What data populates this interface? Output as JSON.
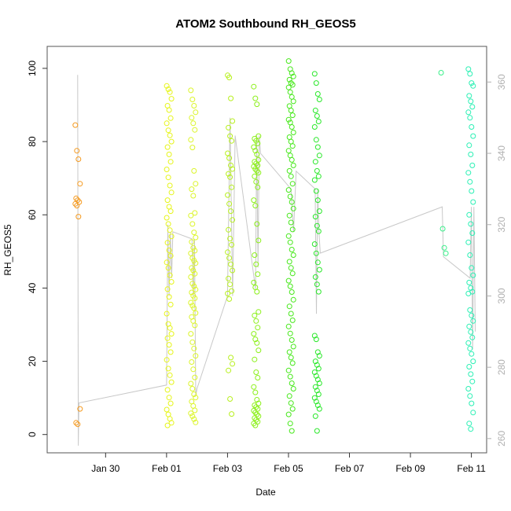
{
  "chart_data": {
    "type": "scatter",
    "title": "ATOM2 Southbound RH_GEOS5",
    "xlabel": "Date",
    "ylabel": "RH_GEOS5",
    "xlim": [
      "2017-01-28T02:00",
      "2017-02-11T12:00"
    ],
    "ylim": [
      -5,
      106
    ],
    "x_ticks": [
      {
        "date": "2017-01-30",
        "label": "Jan 30"
      },
      {
        "date": "2017-02-01",
        "label": "Feb 01"
      },
      {
        "date": "2017-02-03",
        "label": "Feb 03"
      },
      {
        "date": "2017-02-05",
        "label": "Feb 05"
      },
      {
        "date": "2017-02-07",
        "label": "Feb 07"
      },
      {
        "date": "2017-02-09",
        "label": "Feb 09"
      },
      {
        "date": "2017-02-11",
        "label": "Feb 11"
      }
    ],
    "y_ticks": [
      0,
      20,
      40,
      60,
      80,
      100
    ],
    "right_axis": {
      "description": "secondary gray axis for the flight track line (longitude)",
      "ticks": [
        260,
        280,
        300,
        320,
        340,
        360
      ],
      "range": [
        256,
        370
      ],
      "color": "#b0b0b0"
    },
    "marker_colors": {
      "2017-01-29": "#f59a1f",
      "2017-02-01": "#e6f51a",
      "2017-02-02": "#dcf52a",
      "2017-02-03": "#b8f01f",
      "2017-02-04": "#8cf01a",
      "2017-02-05": "#46e81a",
      "2017-02-06": "#2ae82a",
      "2017-02-10": "#3af08a",
      "2017-02-11": "#2af0b4"
    },
    "series": [
      {
        "date": "2017-01-29",
        "time": "2017-01-29T02:00",
        "values": [
          84.5,
          77.5,
          75.2,
          68.5,
          64.5,
          64.0,
          63.5,
          63.0,
          62.5,
          59.5,
          7.0,
          3.2,
          2.8
        ]
      },
      {
        "date": "2017-02-01",
        "time": "2017-02-01T02:00",
        "values": [
          95.2,
          94.3,
          93.5,
          91.7,
          89.8,
          88.6,
          86.4,
          85.0,
          83.1,
          81.7,
          80.0,
          78.5,
          76.5,
          74.5,
          72.4,
          70.2,
          68.0,
          66.1,
          64.0,
          62.2,
          61.0,
          59.2,
          57.5,
          55.8,
          54.1,
          52.4,
          50.3,
          48.8,
          47.0,
          45.5,
          43.5,
          41.7,
          39.7,
          37.6,
          35.5,
          33.0,
          30.2,
          29.1,
          27.5,
          26.3,
          24.5,
          22.5,
          20.4,
          18.0,
          16.2,
          14.3,
          12.2,
          10.1,
          8.5,
          6.8,
          5.5,
          4.3,
          3.2,
          2.5
        ]
      },
      {
        "date": "2017-02-02",
        "time": "2017-02-01T21:00",
        "values": [
          94.0,
          91.5,
          89.8,
          88.0,
          86.5,
          85.0,
          83.2,
          80.5,
          78.4,
          72.0,
          68.5,
          67.0,
          65.2,
          60.5,
          59.8,
          57.5,
          55.2,
          53.8,
          52.6,
          51.0,
          50.2,
          49.5,
          48.2,
          47.5,
          46.8,
          45.5,
          44.8,
          43.9,
          43.0,
          41.2,
          40.5,
          39.6,
          38.8,
          37.9,
          37.2,
          36.0,
          35.2,
          34.5,
          33.2,
          32.1,
          31.0,
          29.8,
          27.5,
          25.2,
          23.5,
          21.5,
          19.8,
          17.8,
          15.6,
          13.9,
          12.5,
          11.0,
          10.1,
          9.0,
          7.8,
          6.6,
          5.8,
          5.0,
          4.2,
          3.3
        ]
      },
      {
        "date": "2017-02-03",
        "time": "2017-02-03T02:00",
        "values": [
          98.1,
          97.5,
          91.8,
          85.6,
          83.8,
          81.5,
          80.2,
          76.8,
          75.5,
          73.5,
          72.5,
          71.2,
          70.3,
          67.5,
          65.4,
          63.0,
          61.0,
          58.6,
          55.9,
          53.5,
          51.8,
          49.8,
          48.2,
          46.5,
          44.8,
          42.6,
          41.0,
          39.2,
          38.5,
          37.0,
          21.0,
          19.3,
          17.5,
          9.7,
          5.6
        ]
      },
      {
        "date": "2017-02-04",
        "time": "2017-02-03T22:30",
        "values": [
          95.0,
          91.8,
          90.2,
          81.5,
          80.8,
          80.2,
          79.5,
          78.5,
          77.5,
          76.5,
          75.0,
          74.5,
          74.0,
          73.5,
          73.2,
          72.5,
          72.0,
          71.5,
          70.5,
          69.0,
          67.5,
          64.0,
          62.5,
          57.5,
          53.0,
          49.0,
          46.5,
          43.8,
          41.5,
          40.2,
          39.0,
          33.5,
          32.5,
          31.0,
          29.2,
          27.5,
          26.0,
          25.0,
          23.0,
          20.5,
          17.0,
          15.5,
          13.0,
          11.5,
          9.5,
          8.5,
          8.0,
          7.5,
          7.0,
          6.5,
          6.0,
          5.5,
          5.0,
          4.5,
          4.0,
          3.5,
          3.0,
          2.5
        ]
      },
      {
        "date": "2017-02-05",
        "time": "2017-02-05T02:00",
        "values": [
          102.0,
          99.8,
          98.7,
          97.8,
          96.9,
          96.0,
          95.5,
          94.8,
          93.5,
          92.2,
          91.0,
          89.7,
          88.5,
          87.2,
          86.0,
          85.2,
          84.0,
          82.5,
          81.2,
          80.0,
          78.8,
          77.5,
          76.2,
          75.0,
          73.5,
          72.0,
          70.5,
          68.5,
          66.8,
          65.0,
          63.5,
          61.7,
          59.8,
          57.9,
          56.0,
          54.2,
          52.5,
          50.5,
          49.0,
          47.2,
          45.5,
          44.0,
          42.0,
          40.5,
          38.9,
          36.8,
          35.0,
          33.0,
          31.2,
          29.5,
          27.6,
          25.8,
          24.0,
          22.5,
          21.0,
          19.5,
          17.5,
          15.8,
          14.0,
          12.5,
          10.5,
          8.6,
          7.0,
          5.5,
          3.0,
          1.0
        ]
      },
      {
        "date": "2017-02-06",
        "time": "2017-02-05T22:30",
        "values": [
          98.5,
          96.0,
          93.0,
          91.5,
          88.5,
          87.0,
          85.5,
          84.0,
          80.5,
          78.5,
          76.2,
          74.5,
          72.0,
          70.5,
          69.5,
          66.5,
          64.0,
          61.0,
          59.5,
          57.0,
          55.5,
          52.0,
          49.5,
          47.0,
          45.0,
          43.0,
          41.0,
          39.0,
          27.0,
          26.0,
          22.5,
          21.5,
          20.0,
          19.0,
          18.0,
          17.0,
          16.0,
          15.0,
          14.0,
          13.0,
          12.0,
          11.0,
          10.0,
          9.0,
          8.0,
          7.0,
          5.0,
          1.0
        ]
      },
      {
        "date": "2017-02-10",
        "time": "2017-02-10T02:00",
        "values": [
          98.8,
          56.2,
          51.0,
          49.5
        ]
      },
      {
        "date": "2017-02-11",
        "time": "2017-02-10T23:30",
        "values": [
          99.8,
          98.5,
          96.0,
          95.2,
          92.5,
          91.0,
          89.5,
          88.0,
          86.5,
          84.0,
          81.5,
          79.0,
          76.5,
          73.5,
          71.5,
          69.0,
          66.5,
          63.5,
          60.0,
          57.5,
          55.0,
          52.5,
          49.0,
          45.5,
          43.5,
          41.5,
          40.0,
          39.0,
          38.5,
          34.0,
          32.5,
          31.0,
          29.5,
          28.0,
          26.5,
          25.0,
          23.5,
          22.0,
          20.0,
          18.5,
          16.5,
          14.5,
          12.5,
          10.5,
          8.5,
          6.0,
          3.0,
          1.5
        ]
      }
    ],
    "flight_track": {
      "color": "#c8c8c8",
      "axis": "right",
      "points": [
        [
          "2017-01-29T02:00",
          362
        ],
        [
          "2017-01-29T02:30",
          258
        ],
        [
          "2017-01-29T03:00",
          270
        ],
        [
          "2017-02-01T00:00",
          275
        ],
        [
          "2017-02-01T01:00",
          320
        ],
        [
          "2017-02-01T02:00",
          300
        ],
        [
          "2017-02-01T03:00",
          318
        ],
        [
          "2017-02-01T04:00",
          305
        ],
        [
          "2017-02-01T05:00",
          318
        ],
        [
          "2017-02-01T20:00",
          316
        ],
        [
          "2017-02-01T21:00",
          300
        ],
        [
          "2017-02-01T22:00",
          316
        ],
        [
          "2017-02-01T23:00",
          272
        ],
        [
          "2017-02-02T00:00",
          274
        ],
        [
          "2017-02-03T00:00",
          300
        ],
        [
          "2017-02-03T02:00",
          350
        ],
        [
          "2017-02-03T04:00",
          300
        ],
        [
          "2017-02-03T06:00",
          345
        ],
        [
          "2017-02-03T22:00",
          302
        ],
        [
          "2017-02-03T23:00",
          345
        ],
        [
          "2017-02-04T00:00",
          308
        ],
        [
          "2017-02-04T01:00",
          345
        ],
        [
          "2017-02-04T02:00",
          340
        ],
        [
          "2017-02-05T02:00",
          330
        ],
        [
          "2017-02-05T04:00",
          318
        ],
        [
          "2017-02-05T06:00",
          335
        ],
        [
          "2017-02-05T21:00",
          330
        ],
        [
          "2017-02-05T22:00",
          295
        ],
        [
          "2017-02-05T23:00",
          330
        ],
        [
          "2017-02-06T00:00",
          318
        ],
        [
          "2017-02-06T01:00",
          312
        ],
        [
          "2017-02-10T01:00",
          325
        ],
        [
          "2017-02-10T02:00",
          311
        ],
        [
          "2017-02-10T23:00",
          305
        ],
        [
          "2017-02-11T00:00",
          325
        ],
        [
          "2017-02-11T01:00",
          285
        ],
        [
          "2017-02-11T02:00",
          325
        ],
        [
          "2017-02-11T03:00",
          290
        ]
      ]
    }
  }
}
